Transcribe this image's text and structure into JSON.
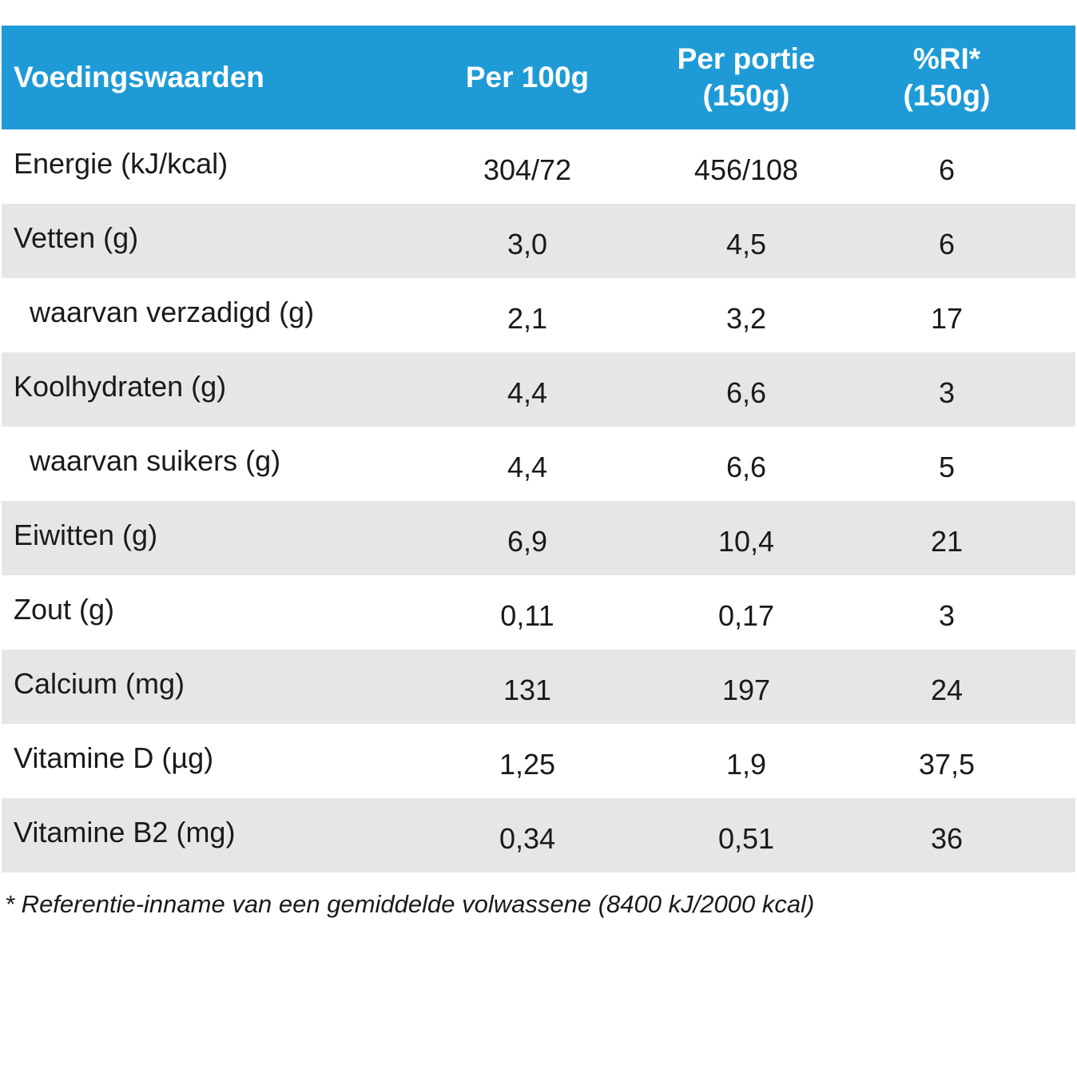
{
  "header": {
    "col1": "Voedingswaarden",
    "col2": "Per 100g",
    "col3_line1": "Per portie",
    "col3_line2": "(150g)",
    "col4_line1": "%RI*",
    "col4_line2": "(150g)"
  },
  "rows": [
    {
      "label": "Energie (kJ/kcal)",
      "per100": "304/72",
      "portion": "456/108",
      "ri": "6"
    },
    {
      "label": "Vetten (g)",
      "per100": "3,0",
      "portion": "4,5",
      "ri": "6"
    },
    {
      "label": "waarvan verzadigd (g)",
      "per100": "2,1",
      "portion": "3,2",
      "ri": "17"
    },
    {
      "label": "Koolhydraten (g)",
      "per100": "4,4",
      "portion": "6,6",
      "ri": "3"
    },
    {
      "label": "waarvan suikers (g)",
      "per100": "4,4",
      "portion": "6,6",
      "ri": "5"
    },
    {
      "label": "Eiwitten (g)",
      "per100": "6,9",
      "portion": "10,4",
      "ri": "21"
    },
    {
      "label": "Zout (g)",
      "per100": "0,11",
      "portion": "0,17",
      "ri": "3"
    },
    {
      "label": "Calcium (mg)",
      "per100": "131",
      "portion": "197",
      "ri": "24"
    },
    {
      "label": "Vitamine D (µg)",
      "per100": "1,25",
      "portion": "1,9",
      "ri": "37,5"
    },
    {
      "label": "Vitamine B2 (mg)",
      "per100": "0,34",
      "portion": "0,51",
      "ri": "36"
    }
  ],
  "footnote": "* Referentie-inname van een gemiddelde volwassene (8400 kJ/2000 kcal)",
  "colors": {
    "header_bg": "#1e9bd7",
    "shaded_row": "#e6e6e6"
  }
}
